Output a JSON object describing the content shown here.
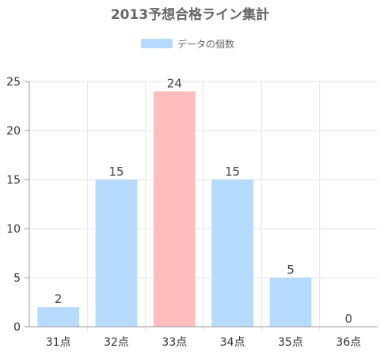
{
  "chart_data": {
    "type": "bar",
    "title": "2013予想合格ライン集計",
    "legend": {
      "label": "データの個数",
      "placement": "top-center"
    },
    "categories": [
      "31点",
      "32点",
      "33点",
      "34点",
      "35点",
      "36点"
    ],
    "series": [
      {
        "name": "データの個数",
        "values": [
          2,
          15,
          24,
          15,
          5,
          0
        ]
      }
    ],
    "highlight_index": 2,
    "ylim": [
      0,
      25
    ],
    "yticks": [
      0,
      5,
      10,
      15,
      20,
      25
    ],
    "grid": true,
    "colors": {
      "bar": "#b7daff",
      "highlight": "#ffbdbe",
      "grid": "#e6e6e6",
      "axis": "#999999"
    }
  }
}
